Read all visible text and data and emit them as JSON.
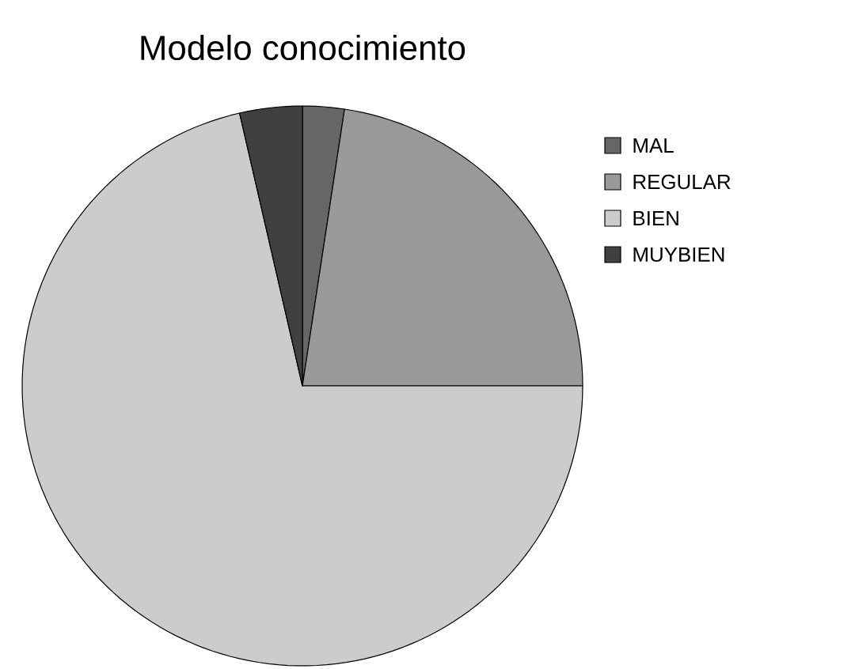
{
  "chart_data": {
    "type": "pie",
    "title": "Modelo conocimiento",
    "categories": [
      "MAL",
      "REGULAR",
      "BIEN",
      "MUYBIEN"
    ],
    "values": [
      2.4,
      22.6,
      71.4,
      3.6
    ],
    "colors": [
      "#666666",
      "#999999",
      "#cccccc",
      "#404040"
    ],
    "legend": "right"
  }
}
